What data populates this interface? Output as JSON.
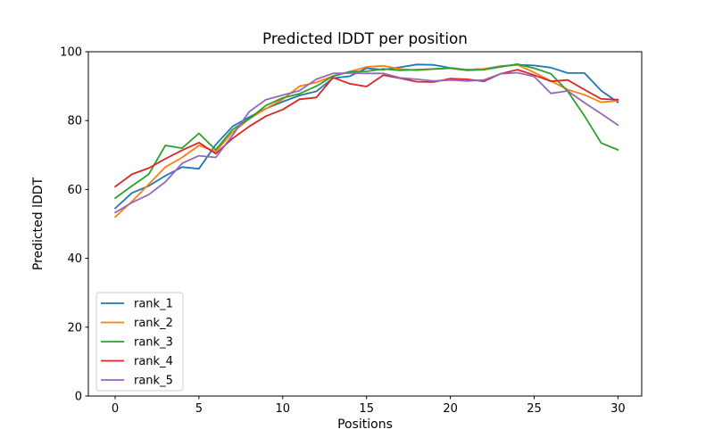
{
  "figure": {
    "title": "Predicted lDDT per position",
    "xlabel": "Positions",
    "ylabel": "Predicted lDDT"
  },
  "chart_data": {
    "type": "line",
    "title": "Predicted lDDT per position",
    "xlabel": "Positions",
    "ylabel": "Predicted lDDT",
    "xlim": [
      -1.6,
      31.6
    ],
    "ylim": [
      0,
      100
    ],
    "xticks": [
      0,
      5,
      10,
      15,
      20,
      25,
      30
    ],
    "yticks": [
      0,
      20,
      40,
      60,
      80,
      100
    ],
    "grid": false,
    "legend_position": "lower left",
    "background": "#ffffff",
    "x": [
      0,
      1,
      2,
      3,
      4,
      5,
      6,
      7,
      8,
      9,
      10,
      11,
      12,
      13,
      14,
      15,
      16,
      17,
      18,
      19,
      20,
      21,
      22,
      23,
      24,
      25,
      26,
      27,
      28,
      29,
      30
    ],
    "series": [
      {
        "name": "rank_1",
        "color": "#1f77b4",
        "values": [
          54.5,
          59.0,
          61.0,
          64.0,
          66.5,
          66.0,
          73.0,
          78.3,
          81.0,
          83.5,
          85.5,
          87.3,
          88.5,
          92.3,
          92.9,
          95.2,
          94.8,
          95.5,
          96.3,
          96.2,
          95.3,
          94.8,
          95.0,
          95.8,
          96.2,
          96.0,
          95.4,
          93.8,
          93.8,
          88.7,
          85.3
        ]
      },
      {
        "name": "rank_2",
        "color": "#ff7f0e",
        "values": [
          52.0,
          56.5,
          61.5,
          66.5,
          69.3,
          72.8,
          71.0,
          76.6,
          80.5,
          83.5,
          86.2,
          90.0,
          91.1,
          92.9,
          94.2,
          95.6,
          95.9,
          95.0,
          94.6,
          95.0,
          95.2,
          94.8,
          95.0,
          95.7,
          96.2,
          94.0,
          91.5,
          89.0,
          87.5,
          85.3,
          85.8
        ]
      },
      {
        "name": "rank_3",
        "color": "#2ca02c",
        "values": [
          57.5,
          61.0,
          64.4,
          72.8,
          72.0,
          76.3,
          71.5,
          77.4,
          80.5,
          84.4,
          86.6,
          87.8,
          90.0,
          92.9,
          94.2,
          94.3,
          95.0,
          94.6,
          94.8,
          95.0,
          95.2,
          94.6,
          94.8,
          95.6,
          96.4,
          95.2,
          93.6,
          88.5,
          81.4,
          73.5,
          71.5
        ]
      },
      {
        "name": "rank_4",
        "color": "#d62728",
        "values": [
          60.8,
          64.4,
          66.2,
          68.9,
          71.4,
          73.6,
          70.4,
          74.8,
          78.3,
          81.3,
          83.2,
          86.2,
          86.7,
          92.5,
          90.7,
          89.9,
          93.2,
          92.3,
          91.3,
          91.2,
          92.2,
          92.0,
          91.4,
          93.6,
          94.8,
          93.2,
          91.4,
          91.8,
          89.0,
          86.3,
          86.1
        ]
      },
      {
        "name": "rank_5",
        "color": "#9467bd",
        "values": [
          53.3,
          56.2,
          58.5,
          62.2,
          67.6,
          69.8,
          69.3,
          75.7,
          82.6,
          86.1,
          87.4,
          88.7,
          92.0,
          93.7,
          93.8,
          93.7,
          93.7,
          92.4,
          92.0,
          91.5,
          91.8,
          91.5,
          91.8,
          93.6,
          93.9,
          92.8,
          87.9,
          88.6,
          85.2,
          82.0,
          78.7
        ]
      }
    ],
    "legend": [
      "rank_1",
      "rank_2",
      "rank_3",
      "rank_4",
      "rank_5"
    ]
  }
}
